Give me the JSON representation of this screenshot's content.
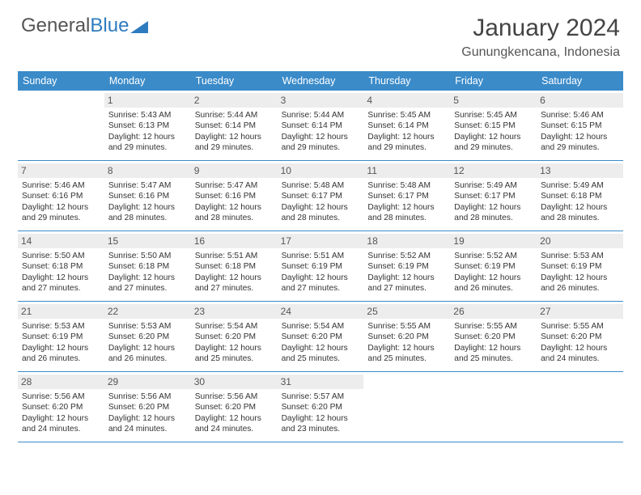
{
  "logo": {
    "text_gray": "General",
    "text_blue": "Blue"
  },
  "title": "January 2024",
  "location": "Gunungkencana, Indonesia",
  "day_names": [
    "Sunday",
    "Monday",
    "Tuesday",
    "Wednesday",
    "Thursday",
    "Friday",
    "Saturday"
  ],
  "colors": {
    "header_bg": "#3b8bc9",
    "header_text": "#ffffff",
    "daynum_bg": "#ededed",
    "border": "#3b8bc9",
    "logo_blue": "#2f7bbf"
  },
  "typography": {
    "title_fontsize": 30,
    "location_fontsize": 16,
    "dayheader_fontsize": 12.5,
    "daynum_fontsize": 12,
    "cell_fontsize": 10.2
  },
  "weeks": [
    [
      null,
      {
        "n": "1",
        "sr": "5:43 AM",
        "ss": "6:13 PM",
        "dl": "12 hours and 29 minutes."
      },
      {
        "n": "2",
        "sr": "5:44 AM",
        "ss": "6:14 PM",
        "dl": "12 hours and 29 minutes."
      },
      {
        "n": "3",
        "sr": "5:44 AM",
        "ss": "6:14 PM",
        "dl": "12 hours and 29 minutes."
      },
      {
        "n": "4",
        "sr": "5:45 AM",
        "ss": "6:14 PM",
        "dl": "12 hours and 29 minutes."
      },
      {
        "n": "5",
        "sr": "5:45 AM",
        "ss": "6:15 PM",
        "dl": "12 hours and 29 minutes."
      },
      {
        "n": "6",
        "sr": "5:46 AM",
        "ss": "6:15 PM",
        "dl": "12 hours and 29 minutes."
      }
    ],
    [
      {
        "n": "7",
        "sr": "5:46 AM",
        "ss": "6:16 PM",
        "dl": "12 hours and 29 minutes."
      },
      {
        "n": "8",
        "sr": "5:47 AM",
        "ss": "6:16 PM",
        "dl": "12 hours and 28 minutes."
      },
      {
        "n": "9",
        "sr": "5:47 AM",
        "ss": "6:16 PM",
        "dl": "12 hours and 28 minutes."
      },
      {
        "n": "10",
        "sr": "5:48 AM",
        "ss": "6:17 PM",
        "dl": "12 hours and 28 minutes."
      },
      {
        "n": "11",
        "sr": "5:48 AM",
        "ss": "6:17 PM",
        "dl": "12 hours and 28 minutes."
      },
      {
        "n": "12",
        "sr": "5:49 AM",
        "ss": "6:17 PM",
        "dl": "12 hours and 28 minutes."
      },
      {
        "n": "13",
        "sr": "5:49 AM",
        "ss": "6:18 PM",
        "dl": "12 hours and 28 minutes."
      }
    ],
    [
      {
        "n": "14",
        "sr": "5:50 AM",
        "ss": "6:18 PM",
        "dl": "12 hours and 27 minutes."
      },
      {
        "n": "15",
        "sr": "5:50 AM",
        "ss": "6:18 PM",
        "dl": "12 hours and 27 minutes."
      },
      {
        "n": "16",
        "sr": "5:51 AM",
        "ss": "6:18 PM",
        "dl": "12 hours and 27 minutes."
      },
      {
        "n": "17",
        "sr": "5:51 AM",
        "ss": "6:19 PM",
        "dl": "12 hours and 27 minutes."
      },
      {
        "n": "18",
        "sr": "5:52 AM",
        "ss": "6:19 PM",
        "dl": "12 hours and 27 minutes."
      },
      {
        "n": "19",
        "sr": "5:52 AM",
        "ss": "6:19 PM",
        "dl": "12 hours and 26 minutes."
      },
      {
        "n": "20",
        "sr": "5:53 AM",
        "ss": "6:19 PM",
        "dl": "12 hours and 26 minutes."
      }
    ],
    [
      {
        "n": "21",
        "sr": "5:53 AM",
        "ss": "6:19 PM",
        "dl": "12 hours and 26 minutes."
      },
      {
        "n": "22",
        "sr": "5:53 AM",
        "ss": "6:20 PM",
        "dl": "12 hours and 26 minutes."
      },
      {
        "n": "23",
        "sr": "5:54 AM",
        "ss": "6:20 PM",
        "dl": "12 hours and 25 minutes."
      },
      {
        "n": "24",
        "sr": "5:54 AM",
        "ss": "6:20 PM",
        "dl": "12 hours and 25 minutes."
      },
      {
        "n": "25",
        "sr": "5:55 AM",
        "ss": "6:20 PM",
        "dl": "12 hours and 25 minutes."
      },
      {
        "n": "26",
        "sr": "5:55 AM",
        "ss": "6:20 PM",
        "dl": "12 hours and 25 minutes."
      },
      {
        "n": "27",
        "sr": "5:55 AM",
        "ss": "6:20 PM",
        "dl": "12 hours and 24 minutes."
      }
    ],
    [
      {
        "n": "28",
        "sr": "5:56 AM",
        "ss": "6:20 PM",
        "dl": "12 hours and 24 minutes."
      },
      {
        "n": "29",
        "sr": "5:56 AM",
        "ss": "6:20 PM",
        "dl": "12 hours and 24 minutes."
      },
      {
        "n": "30",
        "sr": "5:56 AM",
        "ss": "6:20 PM",
        "dl": "12 hours and 24 minutes."
      },
      {
        "n": "31",
        "sr": "5:57 AM",
        "ss": "6:20 PM",
        "dl": "12 hours and 23 minutes."
      },
      null,
      null,
      null
    ]
  ],
  "labels": {
    "sunrise": "Sunrise:",
    "sunset": "Sunset:",
    "daylight": "Daylight:"
  }
}
